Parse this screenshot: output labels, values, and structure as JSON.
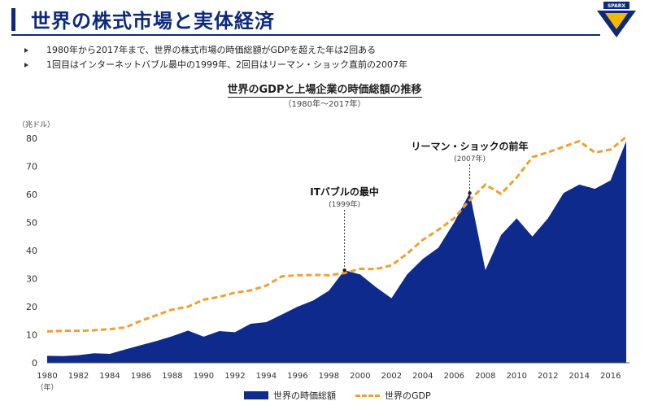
{
  "header": {
    "title": "世界の株式市場と実体経済",
    "logo_text": "SPARX"
  },
  "bullets": [
    "1980年から2017年まで、世界の株式市場の時価総額がGDPを超えた年は2回ある",
    "1回目はインターネットバブル最中の1999年、2回目はリーマン・ショック直前の2007年"
  ],
  "colors": {
    "title": "#0d2a7a",
    "market_cap": "#0d2a8c",
    "gdp": "#f0a030"
  },
  "chart_data": {
    "type": "area",
    "title": "世界のGDPと上場企業の時価総額の推移",
    "subtitle": "（1980年～2017年）",
    "ylabel": "（兆ドル）",
    "xlabel": "（年）",
    "ylim": [
      0,
      80
    ],
    "yticks": [
      0,
      10,
      20,
      30,
      40,
      50,
      60,
      70,
      80
    ],
    "xticks": [
      1980,
      1982,
      1984,
      1986,
      1988,
      1990,
      1992,
      1994,
      1996,
      1998,
      2000,
      2002,
      2004,
      2006,
      2008,
      2010,
      2012,
      2014,
      2016
    ],
    "x": [
      1980,
      1981,
      1982,
      1983,
      1984,
      1985,
      1986,
      1987,
      1988,
      1989,
      1990,
      1991,
      1992,
      1993,
      1994,
      1995,
      1996,
      1997,
      1998,
      1999,
      2000,
      2001,
      2002,
      2003,
      2004,
      2005,
      2006,
      2007,
      2008,
      2009,
      2010,
      2011,
      2012,
      2013,
      2014,
      2015,
      2016,
      2017
    ],
    "series": [
      {
        "name": "世界の時価総額",
        "style": "area",
        "values": [
          2.5,
          2.4,
          2.7,
          3.4,
          3.2,
          4.8,
          6.3,
          7.8,
          9.5,
          11.5,
          9.3,
          11.3,
          10.9,
          13.9,
          14.5,
          17.2,
          20.0,
          22.2,
          25.7,
          33.0,
          31.5,
          27.0,
          23.0,
          31.5,
          37.0,
          41.0,
          50.0,
          60.5,
          33.0,
          45.5,
          51.5,
          45.0,
          51.5,
          60.5,
          63.5,
          62.0,
          65.0,
          79.0
        ]
      },
      {
        "name": "世界のGDP",
        "style": "dashed-line",
        "values": [
          11.2,
          11.4,
          11.4,
          11.6,
          12.0,
          12.6,
          15.0,
          17.0,
          19.0,
          20.0,
          22.5,
          23.5,
          25.0,
          25.8,
          27.5,
          30.8,
          31.2,
          31.3,
          31.2,
          32.0,
          33.5,
          33.4,
          34.7,
          38.9,
          43.8,
          47.4,
          51.5,
          58.0,
          63.5,
          60.2,
          66.0,
          73.3,
          75.0,
          77.0,
          79.0,
          74.9,
          76.0,
          80.5
        ]
      }
    ],
    "annotations": [
      {
        "label": "ITバブルの最中",
        "sublabel": "(1999年)",
        "x": 1999,
        "y": 33.0
      },
      {
        "label": "リーマン・ショックの前年",
        "sublabel": "(2007年)",
        "x": 2007,
        "y": 60.5
      }
    ]
  }
}
